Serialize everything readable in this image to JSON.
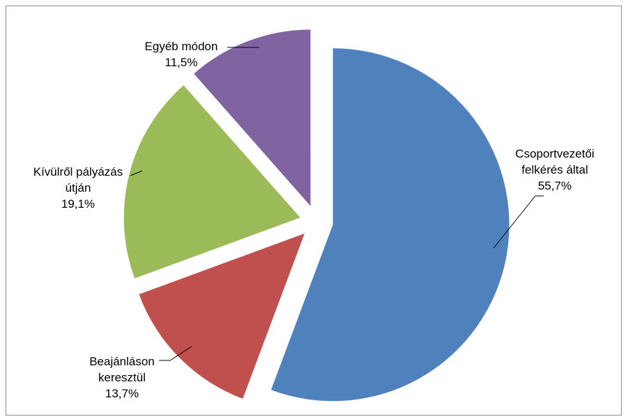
{
  "chart_data": {
    "type": "pie",
    "title": "",
    "exploded": true,
    "legend": "none",
    "slices": [
      {
        "label_lines": [
          "Csoportvezetői",
          "felkérés által"
        ],
        "value": 55.7,
        "value_text": "55,7%",
        "color": "#4f81bd"
      },
      {
        "label_lines": [
          "Beajánláson",
          "keresztül"
        ],
        "value": 13.7,
        "value_text": "13,7%",
        "color": "#c0504d"
      },
      {
        "label_lines": [
          "Kívülről pályázás",
          "útján"
        ],
        "value": 19.1,
        "value_text": "19,1%",
        "color": "#9bbb59"
      },
      {
        "label_lines": [
          "Egyéb módon"
        ],
        "value": 11.5,
        "value_text": "11,5%",
        "color": "#8064a2"
      }
    ]
  }
}
